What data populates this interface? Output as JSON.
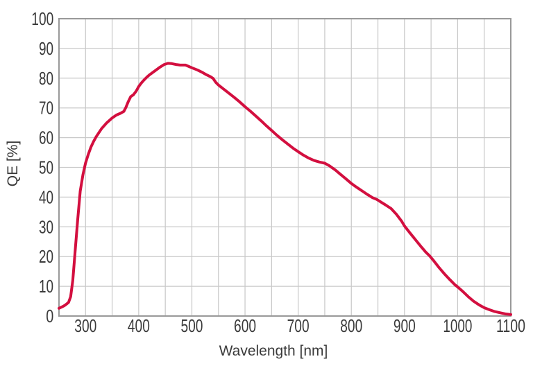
{
  "chart_data": {
    "type": "line",
    "title": "",
    "xlabel": "Wavelength [nm]",
    "ylabel": "QE [%]",
    "grid": true,
    "legend_position": "none",
    "x_axis": {
      "min": 250,
      "max": 1100,
      "tick_labels": [
        "300",
        "400",
        "500",
        "600",
        "700",
        "800",
        "900",
        "1000",
        "1100"
      ],
      "tick_values": [
        300,
        400,
        500,
        600,
        700,
        800,
        900,
        1000,
        1100
      ],
      "grid_step": 50
    },
    "y_axis": {
      "min": 0,
      "max": 100,
      "tick_labels": [
        "0",
        "10",
        "20",
        "30",
        "40",
        "50",
        "60",
        "70",
        "80",
        "90",
        "100"
      ],
      "tick_values": [
        0,
        10,
        20,
        30,
        40,
        50,
        60,
        70,
        80,
        90,
        100
      ],
      "grid_step": 10
    },
    "colors": {
      "line": "#d30f3f",
      "grid": "#c9c9c9",
      "frame": "#999999",
      "text": "#3a3a3a",
      "background": "#ffffff"
    },
    "series": [
      {
        "name": "QE",
        "points": [
          [
            250,
            2.6
          ],
          [
            256,
            3.1
          ],
          [
            262,
            3.7
          ],
          [
            268,
            4.6
          ],
          [
            272,
            6.5
          ],
          [
            276,
            12
          ],
          [
            280,
            21
          ],
          [
            285,
            32
          ],
          [
            290,
            42
          ],
          [
            295,
            47.5
          ],
          [
            300,
            51.5
          ],
          [
            305,
            54.3
          ],
          [
            310,
            56.8
          ],
          [
            315,
            58.7
          ],
          [
            320,
            60.3
          ],
          [
            330,
            63.0
          ],
          [
            340,
            65.0
          ],
          [
            350,
            66.6
          ],
          [
            358,
            67.6
          ],
          [
            366,
            68.2
          ],
          [
            372,
            68.8
          ],
          [
            376,
            70.2
          ],
          [
            380,
            72.0
          ],
          [
            385,
            73.8
          ],
          [
            390,
            74.4
          ],
          [
            395,
            75.6
          ],
          [
            400,
            77.2
          ],
          [
            405,
            78.4
          ],
          [
            410,
            79.4
          ],
          [
            415,
            80.3
          ],
          [
            420,
            81.1
          ],
          [
            430,
            82.4
          ],
          [
            440,
            83.7
          ],
          [
            448,
            84.6
          ],
          [
            455,
            85.0
          ],
          [
            462,
            84.9
          ],
          [
            470,
            84.6
          ],
          [
            478,
            84.4
          ],
          [
            488,
            84.4
          ],
          [
            495,
            83.9
          ],
          [
            500,
            83.5
          ],
          [
            510,
            82.8
          ],
          [
            520,
            81.9
          ],
          [
            528,
            81.1
          ],
          [
            535,
            80.5
          ],
          [
            540,
            79.9
          ],
          [
            545,
            78.6
          ],
          [
            550,
            77.7
          ],
          [
            560,
            76.3
          ],
          [
            570,
            74.9
          ],
          [
            580,
            73.5
          ],
          [
            590,
            72.0
          ],
          [
            600,
            70.4
          ],
          [
            610,
            68.9
          ],
          [
            620,
            67.3
          ],
          [
            630,
            65.7
          ],
          [
            640,
            64.0
          ],
          [
            650,
            62.4
          ],
          [
            660,
            60.8
          ],
          [
            670,
            59.3
          ],
          [
            680,
            57.9
          ],
          [
            690,
            56.5
          ],
          [
            700,
            55.3
          ],
          [
            710,
            54.1
          ],
          [
            720,
            53.1
          ],
          [
            730,
            52.3
          ],
          [
            740,
            51.8
          ],
          [
            750,
            51.4
          ],
          [
            758,
            50.6
          ],
          [
            770,
            49.1
          ],
          [
            780,
            47.6
          ],
          [
            790,
            46.1
          ],
          [
            800,
            44.6
          ],
          [
            810,
            43.3
          ],
          [
            820,
            42.1
          ],
          [
            830,
            40.9
          ],
          [
            840,
            39.8
          ],
          [
            848,
            39.2
          ],
          [
            856,
            38.3
          ],
          [
            865,
            37.3
          ],
          [
            875,
            36.1
          ],
          [
            885,
            34.2
          ],
          [
            895,
            31.8
          ],
          [
            900,
            30.3
          ],
          [
            910,
            28.0
          ],
          [
            920,
            25.8
          ],
          [
            930,
            23.6
          ],
          [
            940,
            21.5
          ],
          [
            947,
            20.3
          ],
          [
            955,
            18.6
          ],
          [
            965,
            16.3
          ],
          [
            975,
            14.2
          ],
          [
            985,
            12.3
          ],
          [
            995,
            10.5
          ],
          [
            1000,
            9.8
          ],
          [
            1010,
            8.2
          ],
          [
            1020,
            6.5
          ],
          [
            1030,
            5.0
          ],
          [
            1040,
            3.8
          ],
          [
            1050,
            2.8
          ],
          [
            1060,
            2.1
          ],
          [
            1070,
            1.5
          ],
          [
            1080,
            1.1
          ],
          [
            1090,
            0.7
          ],
          [
            1100,
            0.5
          ]
        ]
      }
    ]
  }
}
